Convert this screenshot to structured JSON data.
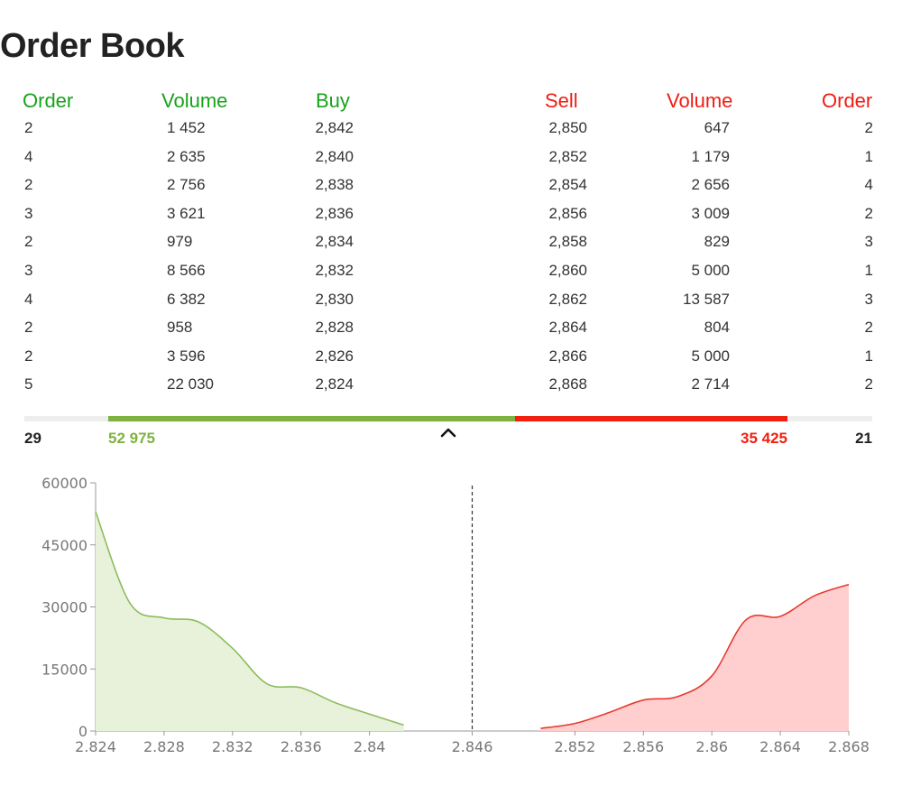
{
  "title": "Order Book",
  "columns": {
    "buy_order": "Order",
    "buy_volume": "Volume",
    "buy_price": "Buy",
    "sell_price": "Sell",
    "sell_volume": "Volume",
    "sell_order": "Order"
  },
  "rows": [
    {
      "buy_order": "2",
      "buy_volume": "1 452",
      "buy_price": "2,842",
      "sell_price": "2,850",
      "sell_volume": "647",
      "sell_order": "2"
    },
    {
      "buy_order": "4",
      "buy_volume": "2 635",
      "buy_price": "2,840",
      "sell_price": "2,852",
      "sell_volume": "1 179",
      "sell_order": "1"
    },
    {
      "buy_order": "2",
      "buy_volume": "2 756",
      "buy_price": "2,838",
      "sell_price": "2,854",
      "sell_volume": "2 656",
      "sell_order": "4"
    },
    {
      "buy_order": "3",
      "buy_volume": "3 621",
      "buy_price": "2,836",
      "sell_price": "2,856",
      "sell_volume": "3 009",
      "sell_order": "2"
    },
    {
      "buy_order": "2",
      "buy_volume": "979",
      "buy_price": "2,834",
      "sell_price": "2,858",
      "sell_volume": "829",
      "sell_order": "3"
    },
    {
      "buy_order": "3",
      "buy_volume": "8 566",
      "buy_price": "2,832",
      "sell_price": "2,860",
      "sell_volume": "5 000",
      "sell_order": "1"
    },
    {
      "buy_order": "4",
      "buy_volume": "6 382",
      "buy_price": "2,830",
      "sell_price": "2,862",
      "sell_volume": "13 587",
      "sell_order": "3"
    },
    {
      "buy_order": "2",
      "buy_volume": "958",
      "buy_price": "2,828",
      "sell_price": "2,864",
      "sell_volume": "804",
      "sell_order": "2"
    },
    {
      "buy_order": "2",
      "buy_volume": "3 596",
      "buy_price": "2,826",
      "sell_price": "2,866",
      "sell_volume": "5 000",
      "sell_order": "1"
    },
    {
      "buy_order": "5",
      "buy_volume": "22 030",
      "buy_price": "2,824",
      "sell_price": "2,868",
      "sell_volume": "2 714",
      "sell_order": "2"
    }
  ],
  "totals": {
    "buy_orders": "29",
    "buy_volume": "52 975",
    "sell_volume": "35 425",
    "sell_orders": "21",
    "buy_volume_value": 52975,
    "sell_volume_value": 35425
  },
  "icons": {
    "collapse": "chevron-up-icon"
  },
  "colors": {
    "buy": "#17a31a",
    "sell": "#ef1c12",
    "buy_bar": "#7fb241",
    "sell_bar": "#f1200f",
    "buy_area_fill": "#e8f1da",
    "buy_area_line": "#8cbd5c",
    "sell_area_fill": "#ffcfcf",
    "sell_area_line": "#e83a2f"
  },
  "chart_data": {
    "type": "area",
    "xlim": [
      2.824,
      2.868
    ],
    "ylim": [
      0,
      60000
    ],
    "x_ticks": [
      "2.824",
      "2.828",
      "2.832",
      "2.836",
      "2.84",
      "2.846",
      "2.852",
      "2.856",
      "2.86",
      "2.864",
      "2.868"
    ],
    "y_ticks": [
      "0",
      "15000",
      "30000",
      "45000",
      "60000"
    ],
    "x_tick_values": [
      2.824,
      2.828,
      2.832,
      2.836,
      2.84,
      2.846,
      2.852,
      2.856,
      2.86,
      2.864,
      2.868
    ],
    "y_tick_values": [
      0,
      15000,
      30000,
      45000,
      60000
    ],
    "mid_price": 2.846,
    "series": [
      {
        "side": "buy",
        "x": [
          2.824,
          2.826,
          2.828,
          2.83,
          2.832,
          2.834,
          2.836,
          2.838,
          2.84,
          2.842
        ],
        "y": [
          52975,
          30945,
          27349,
          26391,
          20009,
          11443,
          10464,
          6843,
          4087,
          1452
        ]
      },
      {
        "side": "sell",
        "x": [
          2.85,
          2.852,
          2.854,
          2.856,
          2.858,
          2.86,
          2.862,
          2.864,
          2.866,
          2.868
        ],
        "y": [
          647,
          1826,
          4482,
          7491,
          8320,
          13320,
          26907,
          27711,
          32711,
          35425
        ]
      }
    ]
  }
}
